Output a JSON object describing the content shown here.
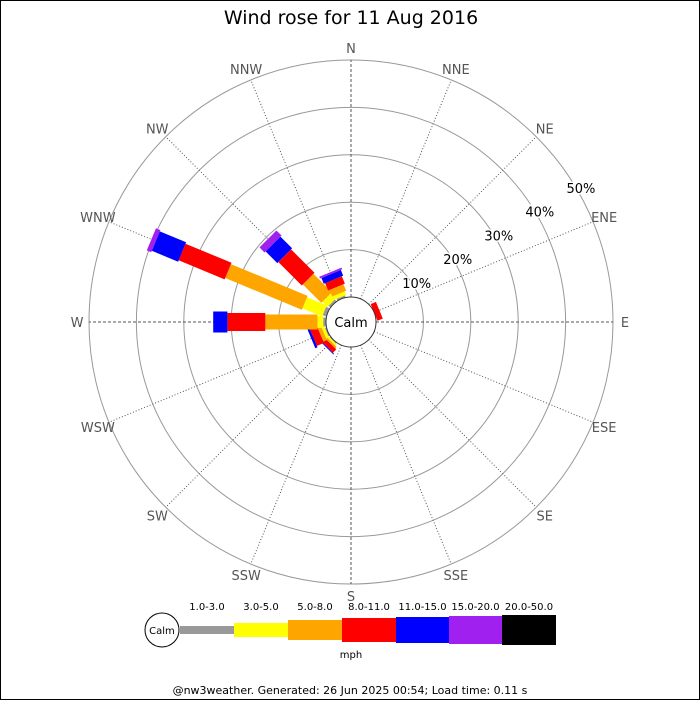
{
  "chart_data": {
    "type": "windrose",
    "title": "Wind rose for 11 Aug 2016",
    "calm_label": "Calm",
    "directions": [
      "N",
      "NNE",
      "NE",
      "ENE",
      "E",
      "ESE",
      "SE",
      "SSE",
      "S",
      "SSW",
      "SW",
      "WSW",
      "W",
      "WNW",
      "NW",
      "NNW"
    ],
    "rings_pct": [
      10,
      20,
      30,
      40,
      50
    ],
    "ring_labels": [
      "10%",
      "20%",
      "30%",
      "40%",
      "50%"
    ],
    "rmax_pct": 50,
    "unit": "mph",
    "speed_bins": [
      {
        "label": "1.0-3.0",
        "color": "#999999"
      },
      {
        "label": "3.0-5.0",
        "color": "#ffff00"
      },
      {
        "label": "5.0-8.0",
        "color": "#ffa500"
      },
      {
        "label": "8.0-11.0",
        "color": "#ff0000"
      },
      {
        "label": "11.0-15.0",
        "color": "#0000ff"
      },
      {
        "label": "15.0-20.0",
        "color": "#a020f0"
      },
      {
        "label": "20.0-50.0",
        "color": "#000000"
      }
    ],
    "series_pct": {
      "N": [
        0.0,
        0.0,
        0.0,
        0.0,
        0.0,
        0.0,
        0.0
      ],
      "NNE": [
        0.0,
        0.0,
        0.0,
        0.0,
        0.0,
        0.0,
        0.0
      ],
      "NE": [
        0.0,
        0.0,
        0.0,
        0.0,
        0.0,
        0.0,
        0.0
      ],
      "ENE": [
        0.0,
        0.0,
        0.0,
        1.2,
        0.0,
        0.0,
        0.0
      ],
      "E": [
        0.0,
        0.0,
        0.0,
        0.0,
        0.0,
        0.0,
        0.0
      ],
      "ESE": [
        0.0,
        0.0,
        0.0,
        0.0,
        0.0,
        0.0,
        0.0
      ],
      "SE": [
        0.0,
        0.0,
        0.0,
        0.0,
        0.0,
        0.0,
        0.0
      ],
      "SSE": [
        0.0,
        0.0,
        0.0,
        0.0,
        0.0,
        0.0,
        0.0
      ],
      "S": [
        0.0,
        0.0,
        0.0,
        0.0,
        0.0,
        0.0,
        0.0
      ],
      "SSW": [
        0.0,
        0.0,
        0.0,
        0.0,
        0.0,
        0.0,
        0.0
      ],
      "SW": [
        0.2,
        0.4,
        0.4,
        1.0,
        0.2,
        0.0,
        0.0
      ],
      "WSW": [
        0.3,
        0.6,
        0.8,
        1.6,
        0.5,
        0.0,
        0.0
      ],
      "W": [
        0.6,
        1.2,
        11.0,
        8.0,
        3.0,
        0.0,
        0.0
      ],
      "WNW": [
        0.8,
        4.5,
        17.5,
        10.5,
        6.0,
        1.0,
        0.0
      ],
      "NW": [
        0.5,
        1.5,
        5.5,
        7.0,
        3.5,
        1.5,
        0.0
      ],
      "NNW": [
        0.4,
        0.8,
        1.5,
        1.7,
        1.3,
        0.4,
        0.0
      ]
    }
  },
  "footer": "@nw3weather. Generated: 26 Jun 2025 00:54; Load time: 0.11 s"
}
